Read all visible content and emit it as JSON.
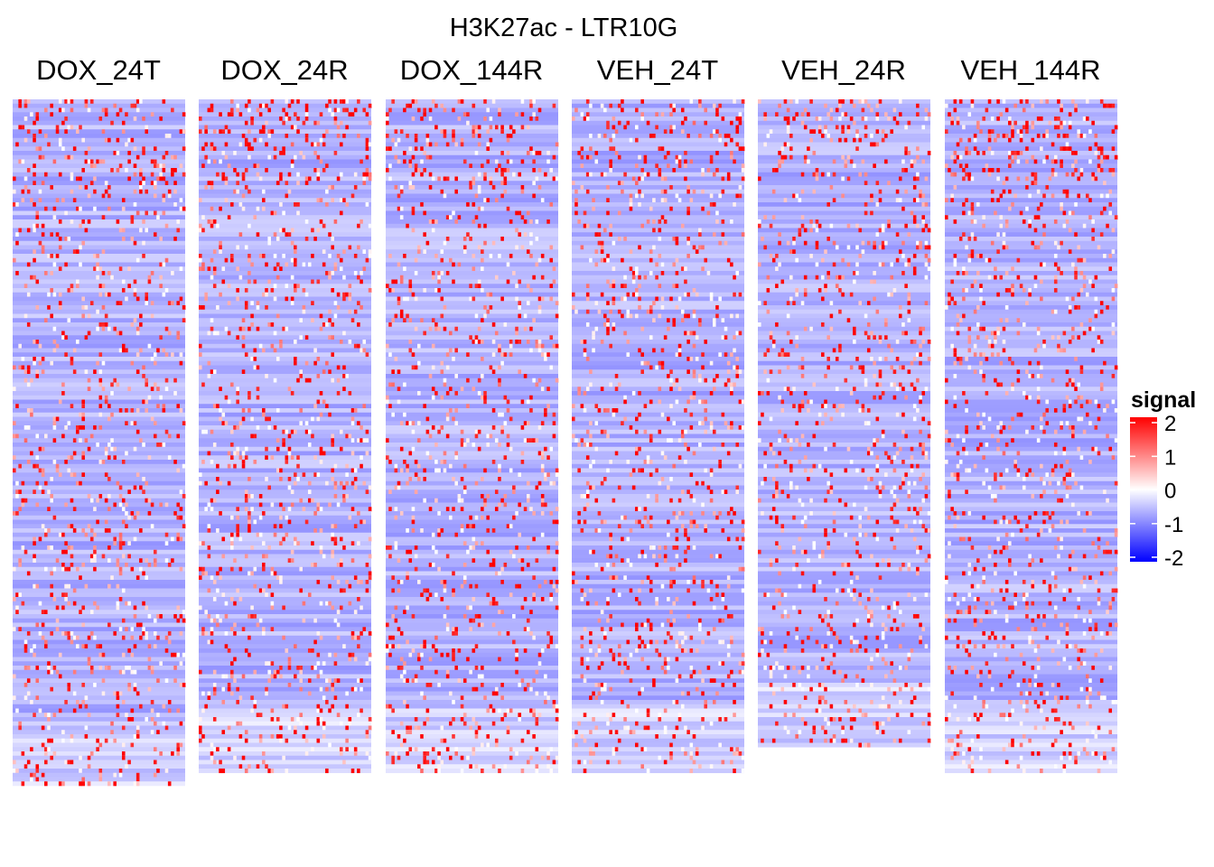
{
  "chart_data": {
    "type": "heatmap",
    "title": "H3K27ac - LTR10G",
    "panels": [
      {
        "label": "DOX_24T",
        "seed": 11,
        "rows": 160
      },
      {
        "label": "DOX_24R",
        "seed": 23,
        "rows": 157
      },
      {
        "label": "DOX_144R",
        "seed": 37,
        "rows": 157
      },
      {
        "label": "VEH_24T",
        "seed": 41,
        "rows": 157
      },
      {
        "label": "VEH_24R",
        "seed": 53,
        "rows": 151
      },
      {
        "label": "VEH_144R",
        "seed": 67,
        "rows": 157
      }
    ],
    "columns_per_panel": 60,
    "legend": {
      "title": "signal",
      "ticks": [
        2,
        1,
        0,
        -1,
        -2
      ],
      "range": [
        -2,
        2
      ],
      "colors": {
        "low": "#0000ff",
        "mid": "#ffffff",
        "high": "#ff0000"
      }
    }
  }
}
